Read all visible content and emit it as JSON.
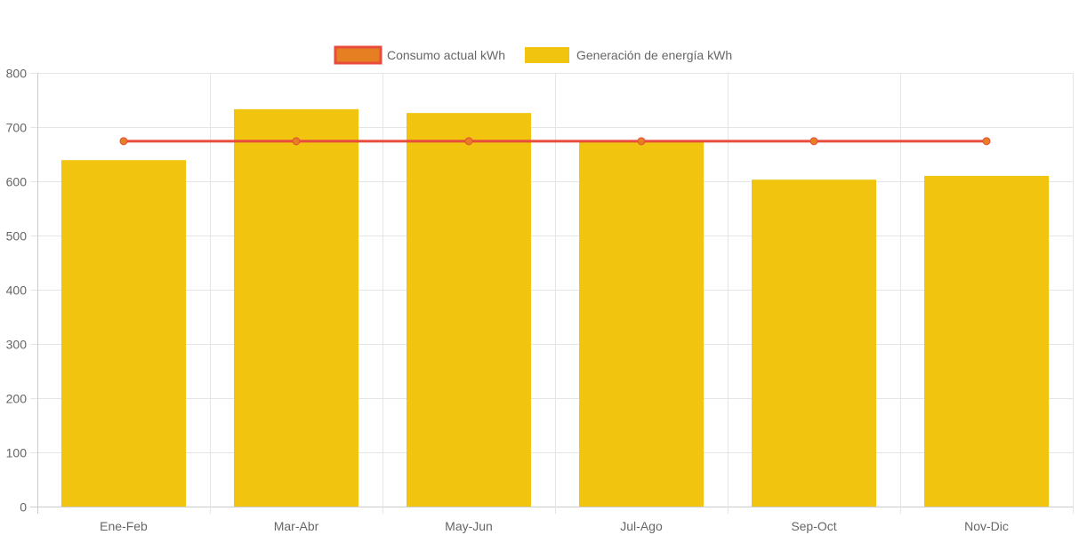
{
  "chart_data": {
    "type": "bar",
    "title": "",
    "xlabel": "",
    "ylabel": "",
    "ylim": [
      0,
      800
    ],
    "yticks": [
      0,
      100,
      200,
      300,
      400,
      500,
      600,
      700,
      800
    ],
    "grid": true,
    "legend_position": "top-center",
    "categories": [
      "Ene-Feb",
      "Mar-Abr",
      "May-Jun",
      "Jul-Ago",
      "Sep-Oct",
      "Nov-Dic"
    ],
    "series": [
      {
        "name": "Consumo actual kWh",
        "type": "line",
        "values": [
          674,
          674,
          674,
          674,
          674,
          674
        ],
        "color": "#e74c3c",
        "fill": "#e67e22"
      },
      {
        "name": "Generación de energía kWh",
        "type": "bar",
        "values": [
          639,
          733,
          726,
          675,
          603,
          610
        ],
        "color": "#f1c40f"
      }
    ]
  }
}
